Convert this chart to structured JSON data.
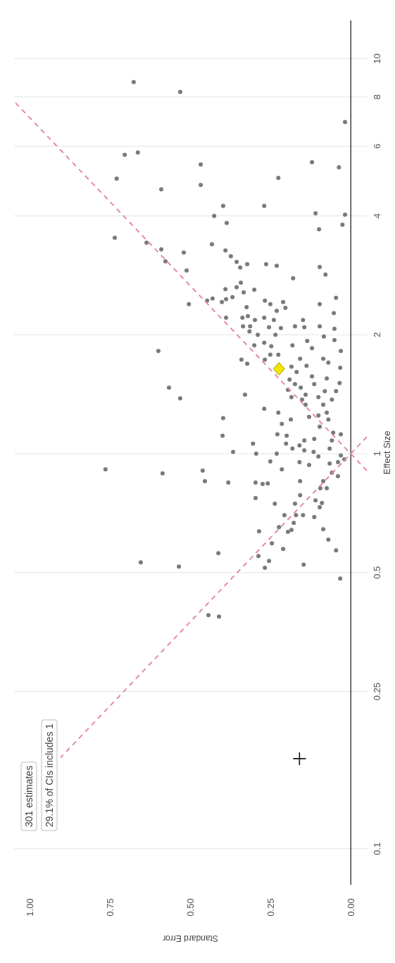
{
  "chart_data": {
    "type": "scatter",
    "xlabel": "Standard Error",
    "ylabel": "Effect Size",
    "log": "y",
    "grid": "y",
    "xlim": [
      1.05,
      -0.05
    ],
    "ylim": [
      0.081,
      12.5
    ],
    "xticks": [
      {
        "value": 1,
        "label": "1.00"
      },
      {
        "value": 0.75,
        "label": "0.75"
      },
      {
        "value": 0.5,
        "label": "0.50"
      },
      {
        "value": 0.25,
        "label": "0.25"
      },
      {
        "value": 0,
        "label": "0.00"
      }
    ],
    "yticks": [
      0.1,
      0.25,
      0.5,
      1,
      2,
      4,
      6,
      8,
      10
    ],
    "annotations": [
      "301 estimates",
      "29.1% of CIs includes 1"
    ],
    "series": [
      {
        "color": "#7a7a7a",
        "marker": "circle",
        "values": [
          8.73,
          8.24,
          6.91,
          5.71,
          5.79,
          5.4,
          5.47,
          5.31,
          4.97,
          4.67,
          4.79,
          4.99,
          4.24,
          4.24,
          4.0,
          3.84,
          4.06,
          4.03,
          3.8,
          3.7,
          3.52,
          3.42,
          3.29,
          3.07,
          3.23,
          2.91,
          3.39,
          3.27,
          3.16,
          3.06,
          2.96,
          3.02,
          3.02,
          2.99,
          2.97,
          2.84,
          2.78,
          2.71,
          2.64,
          2.61,
          2.56,
          2.6,
          2.49,
          2.46,
          2.42,
          2.47,
          2.44,
          2.39,
          2.44,
          2.39,
          2.42,
          2.34,
          2.48,
          2.39,
          2.35,
          2.3,
          2.27,
          2.21,
          2.21,
          2.23,
          2.18,
          2.21,
          2.18,
          2.18,
          2.1,
          2.1,
          2.09,
          2.08,
          2.1,
          2.09,
          2.1,
          2.07,
          2.04,
          2.0,
          2.0,
          1.98,
          1.94,
          1.93,
          1.91,
          1.87,
          1.88,
          1.88,
          1.85,
          1.82,
          1.82,
          1.73,
          1.69,
          1.78,
          1.78,
          1.73,
          1.74,
          1.67,
          1.74,
          1.7,
          1.65,
          1.66,
          1.61,
          1.57,
          1.55,
          1.54,
          1.51,
          1.5,
          1.5,
          1.47,
          1.45,
          1.44,
          1.44,
          1.47,
          1.38,
          1.41,
          1.41,
          1.37,
          1.39,
          1.37,
          1.33,
          1.39,
          1.33,
          1.3,
          1.27,
          1.24,
          1.25,
          1.27,
          1.22,
          1.19,
          1.23,
          1.17,
          1.22,
          1.13,
          1.12,
          1.12,
          1.11,
          1.11,
          1.09,
          1.08,
          1.08,
          1.06,
          1.06,
          1.05,
          1.03,
          1.03,
          1.0,
          1.0,
          1.01,
          0.984,
          1.01,
          1.02,
          0.99,
          0.968,
          0.956,
          0.952,
          0.936,
          0.944,
          0.952,
          0.913,
          0.895,
          0.877,
          0.913,
          0.891,
          0.906,
          0.852,
          0.845,
          0.845,
          0.838,
          0.841,
          0.852,
          0.852,
          0.772,
          0.747,
          0.747,
          0.785,
          0.762,
          0.75,
          0.732,
          0.818,
          0.818,
          0.699,
          0.699,
          0.699,
          0.691,
          0.636,
          0.652,
          0.634,
          0.641,
          0.668,
          0.644,
          0.606,
          0.593,
          0.574,
          0.569,
          0.56,
          0.551,
          0.535,
          0.531,
          0.518,
          0.514,
          0.524,
          0.483,
          0.39,
          0.387
        ],
        "x": [
          0.677,
          0.532,
          0.018,
          0.705,
          0.664,
          0.468,
          0.121,
          0.037,
          0.73,
          0.591,
          0.468,
          0.226,
          0.398,
          0.27,
          0.426,
          0.387,
          0.11,
          0.018,
          0.026,
          0.099,
          0.736,
          0.637,
          0.591,
          0.578,
          0.521,
          0.512,
          0.433,
          0.391,
          0.374,
          0.356,
          0.345,
          0.323,
          0.264,
          0.231,
          0.097,
          0.079,
          0.18,
          0.343,
          0.356,
          0.391,
          0.334,
          0.301,
          0.369,
          0.389,
          0.402,
          0.431,
          0.448,
          0.505,
          0.268,
          0.251,
          0.211,
          0.204,
          0.046,
          0.097,
          0.325,
          0.231,
          0.053,
          0.389,
          0.338,
          0.321,
          0.299,
          0.27,
          0.24,
          0.149,
          0.336,
          0.314,
          0.255,
          0.218,
          0.174,
          0.145,
          0.097,
          0.051,
          0.316,
          0.29,
          0.235,
          0.084,
          0.051,
          0.136,
          0.27,
          0.248,
          0.301,
          0.182,
          0.121,
          0.031,
          0.6,
          0.341,
          0.323,
          0.226,
          0.251,
          0.268,
          0.158,
          0.138,
          0.086,
          0.07,
          0.033,
          0.185,
          0.169,
          0.121,
          0.075,
          0.191,
          0.035,
          0.174,
          0.114,
          0.156,
          0.196,
          0.081,
          0.046,
          0.567,
          0.532,
          0.33,
          0.141,
          0.152,
          0.101,
          0.059,
          0.086,
          0.185,
          0.141,
          0.27,
          0.226,
          0.13,
          0.101,
          0.075,
          0.187,
          0.215,
          0.398,
          0.097,
          0.07,
          0.055,
          0.031,
          0.229,
          0.2,
          0.4,
          0.114,
          0.059,
          0.145,
          0.202,
          0.305,
          0.16,
          0.182,
          0.066,
          0.295,
          0.231,
          0.116,
          0.101,
          0.367,
          0.145,
          0.031,
          0.02,
          0.251,
          0.16,
          0.13,
          0.066,
          0.04,
          0.215,
          0.059,
          0.04,
          0.765,
          0.587,
          0.462,
          0.455,
          0.382,
          0.297,
          0.275,
          0.259,
          0.158,
          0.086,
          0.297,
          0.237,
          0.174,
          0.158,
          0.11,
          0.09,
          0.097,
          0.095,
          0.075,
          0.207,
          0.171,
          0.149,
          0.114,
          0.286,
          0.224,
          0.196,
          0.185,
          0.178,
          0.086,
          0.07,
          0.246,
          0.211,
          0.046,
          0.413,
          0.288,
          0.255,
          0.655,
          0.536,
          0.268,
          0.147,
          0.033,
          0.444,
          0.411
        ]
      },
      {
        "type": "line",
        "color": "#e58aa3",
        "line_style": "dashed",
        "marker": "none",
        "values": [
          1.103,
          0.17
        ],
        "x": [
          -0.05,
          0.905
        ]
      },
      {
        "type": "line",
        "color": "#e58aa3",
        "line_style": "dashed",
        "marker": "none",
        "values": [
          0.906,
          7.8
        ],
        "x": [
          -0.05,
          1.05
        ]
      },
      {
        "type": "scatter",
        "color": "#f2e600",
        "marker": "diamond",
        "values": [
          1.64
        ],
        "x": [
          0.224
        ]
      },
      {
        "type": "scatter",
        "color": "#111111",
        "marker": "cross",
        "values": [
          0.169
        ],
        "x": [
          0.16
        ]
      }
    ]
  }
}
